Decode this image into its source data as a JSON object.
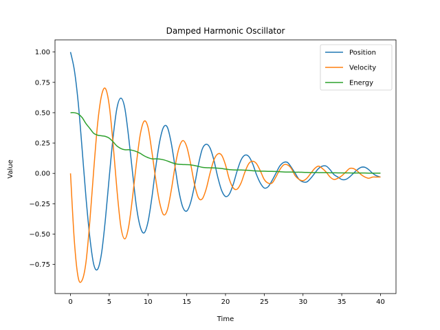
{
  "chart_data": {
    "type": "line",
    "title": "Damped Harmonic Oscillator",
    "xlabel": "Time",
    "ylabel": "Value",
    "xlim": [
      -2,
      42
    ],
    "ylim": [
      -0.99,
      1.1
    ],
    "xticks": [
      0,
      5,
      10,
      15,
      20,
      25,
      30,
      35,
      40
    ],
    "xtick_labels": [
      "0",
      "5",
      "10",
      "15",
      "20",
      "25",
      "30",
      "35",
      "40"
    ],
    "yticks": [
      -0.75,
      -0.5,
      -0.25,
      0.0,
      0.25,
      0.5,
      0.75,
      1.0
    ],
    "ytick_labels": [
      "−0.75",
      "−0.50",
      "−0.25",
      "0.00",
      "0.25",
      "0.50",
      "0.75",
      "1.00"
    ],
    "grid": false,
    "legend_position": "top-right",
    "x_step": 0.5,
    "series": [
      {
        "name": "Position",
        "color": "#1f77b4",
        "x_start": 0,
        "values": [
          1.0,
          0.85,
          0.58,
          0.2,
          -0.2,
          -0.53,
          -0.75,
          -0.79,
          -0.66,
          -0.38,
          -0.03,
          0.3,
          0.54,
          0.62,
          0.54,
          0.3,
          0.01,
          -0.27,
          -0.44,
          -0.49,
          -0.4,
          -0.2,
          0.05,
          0.26,
          0.38,
          0.38,
          0.25,
          0.05,
          -0.15,
          -0.28,
          -0.31,
          -0.24,
          -0.1,
          0.07,
          0.2,
          0.24,
          0.21,
          0.11,
          -0.03,
          -0.14,
          -0.19,
          -0.17,
          -0.09,
          0.02,
          0.11,
          0.15,
          0.14,
          0.08,
          -0.01,
          -0.08,
          -0.12,
          -0.11,
          -0.06,
          0.0,
          0.06,
          0.09,
          0.09,
          0.05,
          0.0,
          -0.05,
          -0.07,
          -0.07,
          -0.04,
          0.0,
          0.04,
          0.06,
          0.06,
          0.03,
          -0.01,
          -0.03,
          -0.05,
          -0.05,
          -0.03,
          0.0,
          0.03,
          0.05,
          0.05,
          0.03,
          0.0,
          -0.02,
          -0.03
        ]
      },
      {
        "name": "Velocity",
        "color": "#ff7f0e",
        "x_start": 0,
        "values": [
          0.0,
          -0.56,
          -0.86,
          -0.88,
          -0.73,
          -0.39,
          0.03,
          0.41,
          0.64,
          0.7,
          0.56,
          0.24,
          -0.14,
          -0.44,
          -0.54,
          -0.44,
          -0.2,
          0.08,
          0.32,
          0.43,
          0.38,
          0.18,
          -0.05,
          -0.24,
          -0.34,
          -0.3,
          -0.14,
          0.06,
          0.21,
          0.27,
          0.22,
          0.08,
          -0.09,
          -0.2,
          -0.21,
          -0.13,
          0.0,
          0.11,
          0.16,
          0.15,
          0.07,
          -0.05,
          -0.12,
          -0.13,
          -0.08,
          0.01,
          0.08,
          0.1,
          0.08,
          0.02,
          -0.05,
          -0.08,
          -0.08,
          -0.03,
          0.03,
          0.07,
          0.07,
          0.04,
          -0.02,
          -0.05,
          -0.06,
          -0.04,
          0.0,
          0.04,
          0.06,
          0.04,
          0.01,
          -0.03,
          -0.05,
          -0.04,
          -0.02,
          0.01,
          0.04,
          0.04,
          0.02,
          -0.01,
          -0.03,
          -0.04,
          -0.03,
          -0.03,
          -0.03
        ]
      },
      {
        "name": "Energy",
        "color": "#2ca02c",
        "x_start": 0,
        "values": [
          0.5,
          0.5,
          0.49,
          0.46,
          0.41,
          0.37,
          0.33,
          0.315,
          0.31,
          0.305,
          0.29,
          0.26,
          0.225,
          0.205,
          0.195,
          0.195,
          0.19,
          0.18,
          0.165,
          0.145,
          0.13,
          0.12,
          0.12,
          0.118,
          0.112,
          0.102,
          0.09,
          0.08,
          0.075,
          0.073,
          0.072,
          0.07,
          0.065,
          0.058,
          0.05,
          0.047,
          0.046,
          0.045,
          0.043,
          0.04,
          0.035,
          0.031,
          0.029,
          0.028,
          0.028,
          0.027,
          0.025,
          0.022,
          0.02,
          0.018,
          0.018,
          0.017,
          0.017,
          0.016,
          0.014,
          0.012,
          0.011,
          0.011,
          0.01,
          0.01,
          0.009,
          0.008,
          0.007,
          0.007,
          0.006,
          0.006,
          0.006,
          0.005,
          0.005,
          0.004,
          0.004,
          0.004,
          0.004,
          0.003,
          0.003,
          0.003,
          0.003,
          0.002,
          0.002,
          0.002,
          0.002
        ]
      }
    ]
  }
}
